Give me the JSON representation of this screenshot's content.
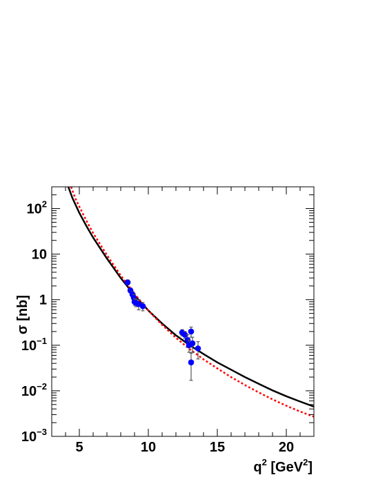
{
  "chart_data": {
    "type": "scatter",
    "xlabel": "q",
    "xlabel_sup1": "2",
    "xlabel_unit_open": " [GeV",
    "xlabel_sup2": "2",
    "xlabel_unit_close": "]",
    "ylabel": "σ [nb]",
    "xlim": [
      3,
      22
    ],
    "ylim": [
      0.001,
      300
    ],
    "yscale": "log",
    "x_ticks": [
      {
        "value": 5,
        "label": "5"
      },
      {
        "value": 10,
        "label": "10"
      },
      {
        "value": 15,
        "label": "15"
      },
      {
        "value": 20,
        "label": "20"
      }
    ],
    "y_ticks": [
      {
        "value": 0.001,
        "base": "10",
        "exp": "−3"
      },
      {
        "value": 0.01,
        "base": "10",
        "exp": "−2"
      },
      {
        "value": 0.1,
        "base": "10",
        "exp": "−1"
      },
      {
        "value": 1,
        "base": "1",
        "exp": ""
      },
      {
        "value": 10,
        "base": "10",
        "exp": ""
      },
      {
        "value": 100,
        "base": "10",
        "exp": "2"
      }
    ],
    "series": [
      {
        "kind": "points",
        "color": "#0000ff",
        "points": [
          {
            "x": 8.5,
            "y": 2.4,
            "err": 0.3
          },
          {
            "x": 8.7,
            "y": 1.6,
            "err": 0.2
          },
          {
            "x": 8.85,
            "y": 1.3,
            "err": 0.2
          },
          {
            "x": 8.95,
            "y": 1.1,
            "err": 0.2
          },
          {
            "x": 9.0,
            "y": 0.9,
            "err": 0.15
          },
          {
            "x": 9.1,
            "y": 0.85,
            "err": 0.15
          },
          {
            "x": 9.3,
            "y": 0.8,
            "err": 0.2
          },
          {
            "x": 9.6,
            "y": 0.72,
            "err": 0.15
          },
          {
            "x": 12.45,
            "y": 0.19,
            "err": 0.03
          },
          {
            "x": 12.65,
            "y": 0.17,
            "err": 0.03
          },
          {
            "x": 12.85,
            "y": 0.13,
            "err": 0.04
          },
          {
            "x": 12.95,
            "y": 0.1,
            "err": 0.03
          },
          {
            "x": 13.1,
            "y": 0.2,
            "err": 0.05
          },
          {
            "x": 13.1,
            "y": 0.042,
            "err": 0.025
          },
          {
            "x": 13.2,
            "y": 0.11,
            "err": 0.04
          },
          {
            "x": 13.6,
            "y": 0.085,
            "err": 0.035
          }
        ]
      },
      {
        "kind": "curve",
        "style": "solid",
        "color": "#000000",
        "x": [
          4.2,
          4.5,
          5,
          5.5,
          6,
          7,
          8,
          9,
          10,
          11,
          12,
          13,
          14,
          15,
          16,
          17,
          18,
          19,
          20,
          21,
          22
        ],
        "y": [
          300,
          170,
          80,
          42,
          23,
          8.0,
          3.0,
          1.25,
          0.58,
          0.3,
          0.165,
          0.1,
          0.064,
          0.042,
          0.029,
          0.02,
          0.0142,
          0.0102,
          0.0076,
          0.0058,
          0.0045
        ]
      },
      {
        "kind": "curve",
        "style": "dotted",
        "color": "#ff0000",
        "x": [
          4.4,
          4.7,
          5,
          5.5,
          6,
          7,
          8,
          9,
          10,
          11,
          12,
          13,
          14,
          15,
          16,
          17,
          18,
          19,
          20,
          21,
          22
        ],
        "y": [
          300,
          170,
          110,
          55,
          29,
          9.5,
          3.4,
          1.35,
          0.58,
          0.28,
          0.145,
          0.082,
          0.049,
          0.031,
          0.02,
          0.0134,
          0.0092,
          0.0065,
          0.0047,
          0.0035,
          0.0027
        ]
      }
    ]
  }
}
